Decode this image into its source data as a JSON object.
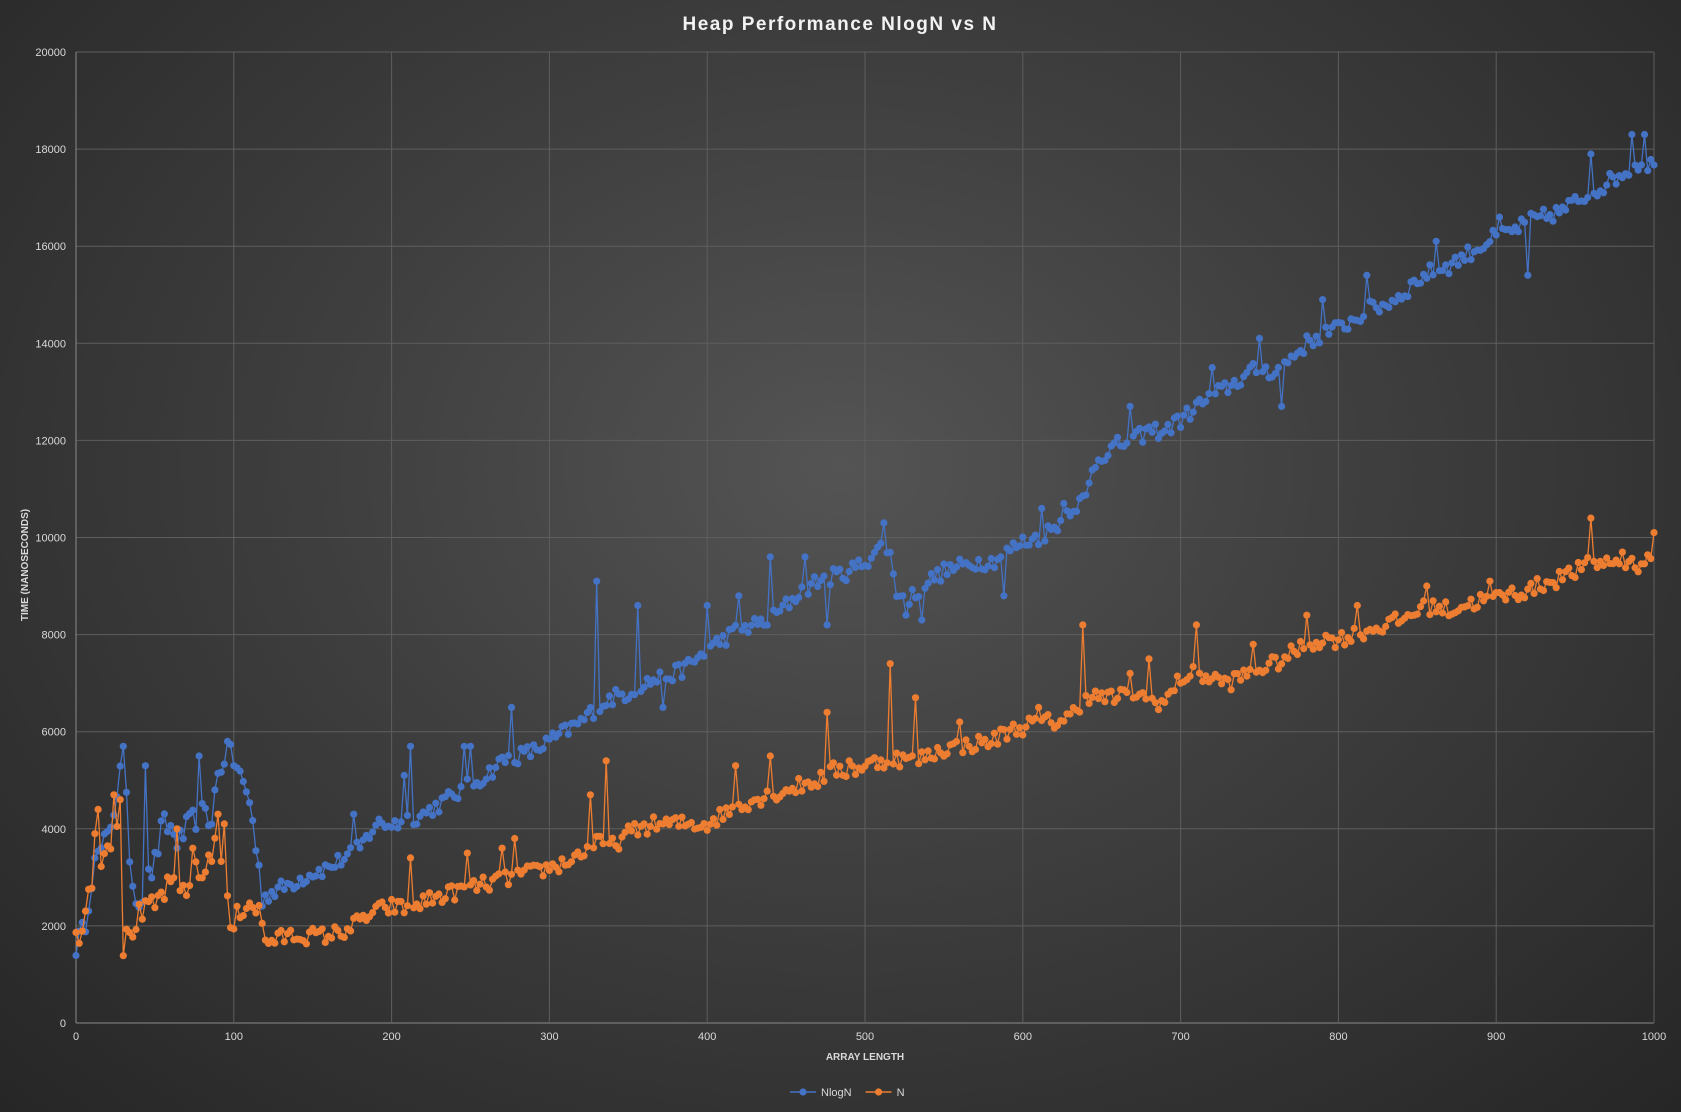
{
  "chart_data": {
    "type": "line",
    "title": "Heap  Performance  NlogN  vs  N",
    "xlabel": "ARRAY LENGTH",
    "ylabel": "TIME (NANOSECONDS)",
    "xlim": [
      0,
      1000
    ],
    "ylim": [
      0,
      20000
    ],
    "x_ticks": [
      0,
      100,
      200,
      300,
      400,
      500,
      600,
      700,
      800,
      900,
      1000
    ],
    "y_ticks": [
      0,
      2000,
      4000,
      6000,
      8000,
      10000,
      12000,
      14000,
      16000,
      18000,
      20000
    ],
    "grid": true,
    "legend_position": "bottom",
    "x_step": 2,
    "series": [
      {
        "name": "NlogN",
        "color": "#4472c4",
        "anchors": [
          [
            0,
            1600
          ],
          [
            5,
            1900
          ],
          [
            10,
            3000
          ],
          [
            15,
            3500
          ],
          [
            20,
            3800
          ],
          [
            25,
            4600
          ],
          [
            30,
            5500
          ],
          [
            35,
            3000
          ],
          [
            40,
            2500
          ],
          [
            45,
            2900
          ],
          [
            50,
            3300
          ],
          [
            55,
            4100
          ],
          [
            60,
            4000
          ],
          [
            65,
            3700
          ],
          [
            70,
            4000
          ],
          [
            75,
            4200
          ],
          [
            80,
            4300
          ],
          [
            85,
            4100
          ],
          [
            90,
            5100
          ],
          [
            95,
            5600
          ],
          [
            100,
            5400
          ],
          [
            105,
            5000
          ],
          [
            110,
            4600
          ],
          [
            115,
            3400
          ],
          [
            118,
            2600
          ],
          [
            125,
            2700
          ],
          [
            135,
            2850
          ],
          [
            150,
            3100
          ],
          [
            160,
            3200
          ],
          [
            170,
            3400
          ],
          [
            180,
            3600
          ],
          [
            190,
            4100
          ],
          [
            200,
            4100
          ],
          [
            210,
            4200
          ],
          [
            220,
            4300
          ],
          [
            230,
            4500
          ],
          [
            240,
            4700
          ],
          [
            250,
            4900
          ],
          [
            260,
            5100
          ],
          [
            270,
            5400
          ],
          [
            280,
            5500
          ],
          [
            290,
            5600
          ],
          [
            300,
            5800
          ],
          [
            310,
            6000
          ],
          [
            320,
            6200
          ],
          [
            330,
            6500
          ],
          [
            340,
            6700
          ],
          [
            350,
            6800
          ],
          [
            360,
            7000
          ],
          [
            370,
            7100
          ],
          [
            380,
            7200
          ],
          [
            390,
            7400
          ],
          [
            400,
            7700
          ],
          [
            410,
            7900
          ],
          [
            420,
            8100
          ],
          [
            430,
            8200
          ],
          [
            440,
            8300
          ],
          [
            450,
            8600
          ],
          [
            460,
            8900
          ],
          [
            470,
            9100
          ],
          [
            480,
            9200
          ],
          [
            490,
            9300
          ],
          [
            500,
            9500
          ],
          [
            510,
            9800
          ],
          [
            515,
            9800
          ],
          [
            520,
            8900
          ],
          [
            525,
            8700
          ],
          [
            530,
            8800
          ],
          [
            540,
            9100
          ],
          [
            550,
            9300
          ],
          [
            560,
            9400
          ],
          [
            570,
            9500
          ],
          [
            580,
            9500
          ],
          [
            590,
            9700
          ],
          [
            600,
            9900
          ],
          [
            610,
            10000
          ],
          [
            620,
            10200
          ],
          [
            630,
            10600
          ],
          [
            640,
            10800
          ],
          [
            645,
            11500
          ],
          [
            650,
            11700
          ],
          [
            660,
            11900
          ],
          [
            670,
            12000
          ],
          [
            680,
            12200
          ],
          [
            690,
            12200
          ],
          [
            700,
            12400
          ],
          [
            710,
            12700
          ],
          [
            720,
            12900
          ],
          [
            730,
            13100
          ],
          [
            740,
            13300
          ],
          [
            750,
            13500
          ],
          [
            760,
            13400
          ],
          [
            770,
            13700
          ],
          [
            780,
            14000
          ],
          [
            790,
            14200
          ],
          [
            800,
            14300
          ],
          [
            810,
            14500
          ],
          [
            820,
            14700
          ],
          [
            830,
            14800
          ],
          [
            840,
            15000
          ],
          [
            850,
            15300
          ],
          [
            860,
            15500
          ],
          [
            870,
            15600
          ],
          [
            880,
            15800
          ],
          [
            890,
            16000
          ],
          [
            900,
            16200
          ],
          [
            910,
            16300
          ],
          [
            920,
            16500
          ],
          [
            930,
            16600
          ],
          [
            940,
            16700
          ],
          [
            950,
            16900
          ],
          [
            960,
            17100
          ],
          [
            970,
            17300
          ],
          [
            980,
            17500
          ],
          [
            990,
            17700
          ],
          [
            1000,
            17700
          ]
        ],
        "spikes": [
          [
            12,
            3400
          ],
          [
            30,
            5700
          ],
          [
            44,
            5300
          ],
          [
            78,
            5500
          ],
          [
            96,
            5800
          ],
          [
            176,
            4300
          ],
          [
            208,
            5100
          ],
          [
            212,
            5700
          ],
          [
            246,
            5700
          ],
          [
            250,
            5700
          ],
          [
            275,
            6500
          ],
          [
            330,
            9100
          ],
          [
            355,
            8600
          ],
          [
            372,
            6500
          ],
          [
            400,
            8600
          ],
          [
            420,
            8800
          ],
          [
            440,
            9600
          ],
          [
            462,
            9600
          ],
          [
            475,
            8200
          ],
          [
            512,
            10300
          ],
          [
            526,
            8400
          ],
          [
            535,
            8300
          ],
          [
            588,
            8800
          ],
          [
            612,
            10600
          ],
          [
            625,
            10700
          ],
          [
            668,
            12700
          ],
          [
            698,
            12500
          ],
          [
            720,
            13500
          ],
          [
            750,
            14100
          ],
          [
            764,
            12700
          ],
          [
            790,
            14900
          ],
          [
            818,
            15400
          ],
          [
            862,
            16100
          ],
          [
            902,
            16600
          ],
          [
            920,
            15400
          ],
          [
            960,
            17900
          ],
          [
            986,
            18300
          ],
          [
            994,
            18300
          ]
        ]
      },
      {
        "name": "N",
        "color": "#ed7d31",
        "anchors": [
          [
            0,
            1700
          ],
          [
            5,
            2200
          ],
          [
            10,
            3000
          ],
          [
            15,
            3400
          ],
          [
            20,
            3700
          ],
          [
            25,
            4000
          ],
          [
            28,
            4300
          ],
          [
            30,
            1600
          ],
          [
            35,
            1900
          ],
          [
            40,
            2200
          ],
          [
            45,
            2300
          ],
          [
            50,
            2400
          ],
          [
            55,
            2700
          ],
          [
            60,
            2800
          ],
          [
            65,
            2700
          ],
          [
            70,
            2800
          ],
          [
            75,
            3100
          ],
          [
            80,
            3000
          ],
          [
            85,
            3500
          ],
          [
            90,
            3800
          ],
          [
            94,
            3200
          ],
          [
            97,
            2000
          ],
          [
            100,
            2000
          ],
          [
            105,
            2400
          ],
          [
            110,
            2500
          ],
          [
            115,
            2400
          ],
          [
            120,
            1700
          ],
          [
            125,
            1700
          ],
          [
            135,
            1800
          ],
          [
            150,
            1800
          ],
          [
            160,
            1800
          ],
          [
            170,
            1900
          ],
          [
            180,
            2100
          ],
          [
            190,
            2300
          ],
          [
            200,
            2400
          ],
          [
            210,
            2350
          ],
          [
            220,
            2500
          ],
          [
            230,
            2600
          ],
          [
            240,
            2700
          ],
          [
            250,
            2800
          ],
          [
            260,
            2850
          ],
          [
            270,
            2950
          ],
          [
            280,
            3050
          ],
          [
            290,
            3100
          ],
          [
            300,
            3200
          ],
          [
            310,
            3300
          ],
          [
            320,
            3500
          ],
          [
            330,
            3700
          ],
          [
            340,
            3650
          ],
          [
            350,
            3900
          ],
          [
            360,
            4050
          ],
          [
            370,
            4100
          ],
          [
            380,
            4100
          ],
          [
            390,
            4100
          ],
          [
            400,
            4100
          ],
          [
            410,
            4300
          ],
          [
            420,
            4500
          ],
          [
            430,
            4600
          ],
          [
            440,
            4700
          ],
          [
            450,
            4800
          ],
          [
            460,
            4900
          ],
          [
            470,
            5000
          ],
          [
            480,
            5200
          ],
          [
            490,
            5200
          ],
          [
            500,
            5300
          ],
          [
            510,
            5400
          ],
          [
            520,
            5450
          ],
          [
            530,
            5400
          ],
          [
            540,
            5500
          ],
          [
            550,
            5650
          ],
          [
            560,
            5700
          ],
          [
            570,
            5750
          ],
          [
            580,
            5800
          ],
          [
            590,
            6000
          ],
          [
            600,
            6100
          ],
          [
            610,
            6200
          ],
          [
            620,
            6200
          ],
          [
            630,
            6300
          ],
          [
            640,
            6750
          ],
          [
            650,
            6700
          ],
          [
            660,
            6700
          ],
          [
            670,
            6800
          ],
          [
            680,
            6650
          ],
          [
            690,
            6600
          ],
          [
            700,
            7100
          ],
          [
            710,
            7200
          ],
          [
            720,
            7100
          ],
          [
            730,
            7000
          ],
          [
            740,
            7150
          ],
          [
            750,
            7300
          ],
          [
            760,
            7400
          ],
          [
            770,
            7600
          ],
          [
            780,
            7800
          ],
          [
            790,
            7900
          ],
          [
            800,
            7900
          ],
          [
            810,
            8000
          ],
          [
            820,
            8100
          ],
          [
            830,
            8200
          ],
          [
            840,
            8300
          ],
          [
            850,
            8500
          ],
          [
            860,
            8600
          ],
          [
            870,
            8500
          ],
          [
            880,
            8600
          ],
          [
            890,
            8700
          ],
          [
            900,
            8750
          ],
          [
            910,
            8850
          ],
          [
            920,
            8900
          ],
          [
            930,
            9050
          ],
          [
            940,
            9150
          ],
          [
            950,
            9300
          ],
          [
            960,
            9450
          ],
          [
            970,
            9500
          ],
          [
            980,
            9500
          ],
          [
            990,
            9450
          ],
          [
            1000,
            9600
          ]
        ],
        "spikes": [
          [
            12,
            3900
          ],
          [
            14,
            4400
          ],
          [
            24,
            4700
          ],
          [
            27,
            4600
          ],
          [
            64,
            4000
          ],
          [
            74,
            3600
          ],
          [
            90,
            4300
          ],
          [
            94,
            4100
          ],
          [
            212,
            3400
          ],
          [
            248,
            3500
          ],
          [
            270,
            3600
          ],
          [
            278,
            3800
          ],
          [
            325,
            4700
          ],
          [
            335,
            5400
          ],
          [
            418,
            5300
          ],
          [
            440,
            5500
          ],
          [
            475,
            6400
          ],
          [
            490,
            5400
          ],
          [
            515,
            7400
          ],
          [
            532,
            6700
          ],
          [
            560,
            6200
          ],
          [
            610,
            6500
          ],
          [
            637,
            8200
          ],
          [
            668,
            7200
          ],
          [
            680,
            7500
          ],
          [
            710,
            8200
          ],
          [
            745,
            7800
          ],
          [
            780,
            8400
          ],
          [
            812,
            8600
          ],
          [
            855,
            9000
          ],
          [
            895,
            9100
          ],
          [
            940,
            9300
          ],
          [
            960,
            10400
          ],
          [
            980,
            9700
          ],
          [
            999,
            10100
          ]
        ]
      }
    ]
  }
}
